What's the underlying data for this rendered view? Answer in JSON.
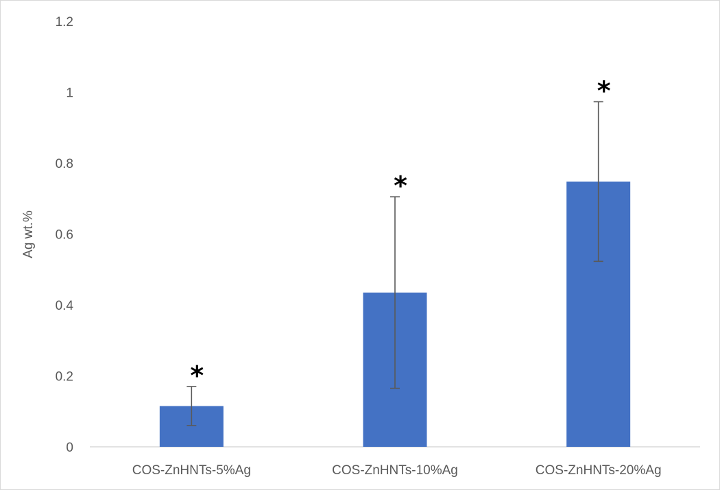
{
  "chart_data": {
    "type": "bar",
    "title": "",
    "xlabel": "",
    "ylabel": "Ag wt.%",
    "categories": [
      "COS-ZnHNTs-5%Ag",
      "COS-ZnHNTs-10%Ag",
      "COS-ZnHNTs-20%Ag"
    ],
    "series": [
      {
        "values": [
          0.115,
          0.435,
          0.748
        ],
        "error": [
          0.055,
          0.27,
          0.225
        ]
      }
    ],
    "annotations": [
      "*",
      "*",
      "*"
    ],
    "ylim": [
      0,
      1.2
    ],
    "yticks": [
      "0",
      "0.2",
      "0.4",
      "0.6",
      "0.8",
      "1",
      "1.2"
    ],
    "grid": false,
    "legend": "none",
    "colors": {
      "bar": "#4472c4",
      "error_bar": "#595959",
      "axis_line": "#d9d9d9",
      "text": "#595959",
      "annotation": "#000000"
    }
  }
}
